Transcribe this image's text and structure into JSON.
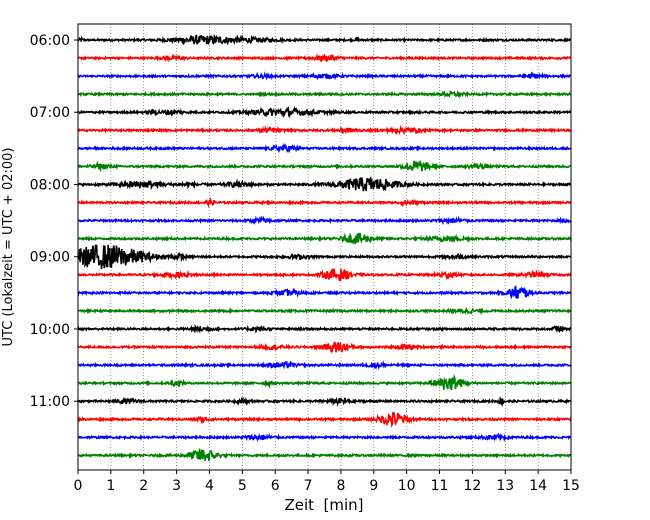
{
  "chart_data": {
    "type": "line",
    "title": "",
    "xlabel": "Zeit  [min]",
    "ylabel": "UTC (Lokalzeit = UTC + 02:00)",
    "xlim": [
      0,
      15
    ],
    "x_ticks": [
      "0",
      "1",
      "2",
      "3",
      "4",
      "5",
      "6",
      "7",
      "8",
      "9",
      "10",
      "11",
      "12",
      "13",
      "14",
      "15"
    ],
    "y_ticks": [
      "06:00",
      "07:00",
      "08:00",
      "09:00",
      "10:00",
      "11:00"
    ],
    "grid": "vertical dotted",
    "legend": "none",
    "trace_colors": [
      "#000000",
      "#ff0000",
      "#0000ff",
      "#008000"
    ],
    "traces_per_hour": 4,
    "trace_minutes": 15,
    "series": [
      {
        "start": "06:00",
        "events": [
          [
            0.1,
            0.25,
            0.05
          ],
          [
            3.6,
            0.4,
            0.8
          ],
          [
            4.3,
            0.3,
            0.9
          ],
          [
            5.5,
            0.2,
            0.6
          ],
          [
            8.5,
            0.6,
            0.03
          ]
        ]
      },
      {
        "start": "06:15",
        "events": [
          [
            2.9,
            0.2,
            0.3
          ],
          [
            7.6,
            0.35,
            0.4
          ]
        ]
      },
      {
        "start": "06:30",
        "events": [
          [
            5.6,
            0.2,
            0.3
          ],
          [
            7.5,
            0.25,
            0.4
          ],
          [
            13.8,
            0.3,
            0.3
          ]
        ]
      },
      {
        "start": "06:45",
        "events": [
          [
            11.4,
            0.3,
            0.3
          ]
        ]
      },
      {
        "start": "07:00",
        "events": [
          [
            2.3,
            0.25,
            0.2
          ],
          [
            2.8,
            0.3,
            0.2
          ],
          [
            3.1,
            0.2,
            0.1
          ],
          [
            6.3,
            0.5,
            1.0
          ]
        ]
      },
      {
        "start": "07:15",
        "events": [
          [
            5.8,
            0.3,
            0.3
          ],
          [
            8.2,
            0.25,
            0.3
          ],
          [
            10.0,
            0.3,
            0.5
          ]
        ]
      },
      {
        "start": "07:30",
        "events": [
          [
            6.3,
            0.35,
            0.4
          ]
        ]
      },
      {
        "start": "07:45",
        "events": [
          [
            0.7,
            0.35,
            0.3
          ],
          [
            10.3,
            0.8,
            0.4
          ],
          [
            12.2,
            0.3,
            0.3
          ]
        ]
      },
      {
        "start": "08:00",
        "events": [
          [
            1.9,
            0.45,
            0.7
          ],
          [
            3.4,
            0.25,
            0.3
          ],
          [
            4.9,
            0.35,
            0.4
          ],
          [
            8.8,
            1.0,
            0.9
          ]
        ]
      },
      {
        "start": "08:15",
        "events": [
          [
            4.0,
            0.3,
            0.2
          ],
          [
            10.1,
            0.3,
            0.3
          ]
        ]
      },
      {
        "start": "08:30",
        "events": [
          [
            5.6,
            0.3,
            0.3
          ],
          [
            11.4,
            0.3,
            0.4
          ],
          [
            14.9,
            0.25,
            0.2
          ]
        ]
      },
      {
        "start": "08:45",
        "events": [
          [
            8.5,
            0.75,
            0.4
          ],
          [
            11.2,
            0.3,
            0.6
          ]
        ]
      },
      {
        "start": "09:00",
        "events": [
          [
            0.8,
            1.8,
            1.2
          ],
          [
            3.1,
            0.3,
            0.2
          ],
          [
            6.7,
            0.25,
            0.4
          ],
          [
            11.5,
            0.3,
            0.3
          ]
        ]
      },
      {
        "start": "09:15",
        "events": [
          [
            3.0,
            0.3,
            0.5
          ],
          [
            7.9,
            0.9,
            0.4
          ],
          [
            11.2,
            0.35,
            0.3
          ],
          [
            13.9,
            0.3,
            0.4
          ]
        ]
      },
      {
        "start": "09:30",
        "events": [
          [
            6.4,
            0.35,
            0.4
          ],
          [
            13.4,
            1.0,
            0.3
          ]
        ]
      },
      {
        "start": "09:45",
        "events": [
          [
            11.8,
            0.25,
            0.4
          ]
        ]
      },
      {
        "start": "10:00",
        "events": [
          [
            3.7,
            0.3,
            0.3
          ],
          [
            5.5,
            0.25,
            0.3
          ],
          [
            14.6,
            0.35,
            0.2
          ]
        ]
      },
      {
        "start": "10:15",
        "events": [
          [
            5.9,
            0.3,
            0.3
          ],
          [
            7.9,
            0.8,
            0.4
          ],
          [
            10.0,
            0.3,
            0.3
          ]
        ]
      },
      {
        "start": "10:30",
        "events": [
          [
            6.2,
            0.35,
            0.4
          ],
          [
            9.1,
            0.3,
            0.3
          ]
        ]
      },
      {
        "start": "10:45",
        "events": [
          [
            3.0,
            0.35,
            0.2
          ],
          [
            5.8,
            0.3,
            0.1
          ],
          [
            11.3,
            1.1,
            0.4
          ]
        ]
      },
      {
        "start": "11:00",
        "events": [
          [
            1.5,
            0.3,
            0.3
          ],
          [
            5.0,
            0.25,
            0.2
          ],
          [
            8.0,
            0.35,
            0.4
          ],
          [
            12.9,
            0.45,
            0.1
          ]
        ]
      },
      {
        "start": "11:15",
        "events": [
          [
            3.8,
            0.3,
            0.2
          ],
          [
            9.6,
            1.1,
            0.4
          ]
        ]
      },
      {
        "start": "11:30",
        "events": [
          [
            5.5,
            0.35,
            0.4
          ],
          [
            12.7,
            0.3,
            0.4
          ]
        ]
      },
      {
        "start": "11:45",
        "events": [
          [
            3.8,
            1.0,
            0.4
          ]
        ]
      }
    ]
  }
}
